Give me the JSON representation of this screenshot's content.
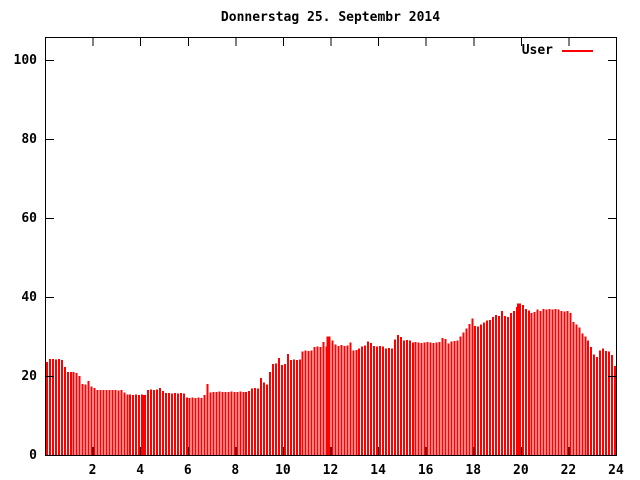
{
  "chart_data": {
    "type": "bar",
    "title": "Donnerstag 25. Septembr 2014",
    "xlabel": "",
    "ylabel": "",
    "xlim": [
      0,
      24
    ],
    "ylim": [
      0,
      105
    ],
    "xticks": [
      2,
      4,
      6,
      8,
      10,
      12,
      14,
      16,
      18,
      20,
      22,
      24
    ],
    "yticks": [
      0,
      20,
      40,
      60,
      80,
      100
    ],
    "grid": false,
    "legend_position": "top-right-inside",
    "background_color": "#ffffff",
    "axis_color": "#000000",
    "wide_bar_indices": [
      33,
      95,
      159
    ],
    "series": [
      {
        "name": "User",
        "color": "#ff0000",
        "x_unit": "hours",
        "x_start_hours": 0.125,
        "x_step_hours": 0.125,
        "values": [
          23.5,
          24.3,
          24.3,
          24.2,
          24.3,
          24.0,
          22.3,
          21.0,
          21.0,
          21.0,
          20.8,
          20.0,
          18.0,
          17.8,
          18.7,
          17.3,
          17.0,
          16.5,
          16.5,
          16.4,
          16.5,
          16.4,
          16.5,
          16.4,
          16.3,
          16.4,
          15.8,
          15.3,
          15.3,
          15.2,
          15.3,
          15.2,
          15.3,
          15.2,
          16.5,
          16.6,
          16.5,
          16.6,
          17.0,
          16.2,
          15.7,
          15.7,
          15.6,
          15.7,
          15.6,
          15.7,
          15.6,
          14.5,
          14.4,
          14.5,
          14.4,
          14.5,
          14.4,
          15.2,
          18.0,
          15.8,
          16.0,
          16.0,
          16.1,
          15.9,
          16.0,
          16.0,
          16.1,
          16.0,
          16.0,
          16.1,
          16.0,
          16.0,
          16.2,
          16.9,
          17.0,
          16.9,
          19.5,
          18.3,
          17.8,
          21.0,
          23.0,
          23.2,
          24.5,
          22.8,
          23.0,
          25.6,
          24.0,
          24.2,
          24.0,
          24.2,
          26.2,
          26.4,
          26.3,
          26.4,
          27.3,
          27.5,
          27.4,
          28.6,
          27.5,
          30.0,
          29.0,
          28.0,
          27.6,
          27.8,
          27.6,
          27.7,
          28.5,
          26.4,
          26.6,
          27.0,
          27.5,
          27.7,
          28.7,
          28.3,
          27.6,
          27.5,
          27.6,
          27.5,
          27.0,
          27.1,
          27.0,
          29.2,
          30.4,
          29.9,
          29.0,
          29.1,
          29.0,
          28.5,
          28.6,
          28.5,
          28.4,
          28.5,
          28.6,
          28.5,
          28.4,
          28.5,
          28.6,
          29.6,
          29.4,
          28.2,
          28.7,
          28.8,
          29.0,
          30.0,
          31.0,
          32.0,
          33.2,
          34.5,
          32.7,
          32.5,
          33.0,
          33.5,
          34.0,
          34.2,
          35.0,
          35.4,
          35.2,
          36.5,
          35.2,
          35.0,
          36.0,
          36.5,
          37.5,
          38.4,
          38.0,
          37.0,
          36.6,
          36.0,
          36.2,
          36.8,
          36.5,
          37.0,
          36.8,
          37.0,
          36.8,
          37.0,
          36.8,
          36.5,
          36.3,
          36.5,
          36.0,
          33.7,
          33.0,
          32.3,
          30.8,
          30.0,
          29.0,
          27.3,
          25.5,
          24.8,
          26.5,
          27.0,
          26.3,
          26.2,
          25.3,
          22.5
        ]
      }
    ]
  },
  "legend": {
    "label": "User",
    "line_color": "#ff0000"
  }
}
